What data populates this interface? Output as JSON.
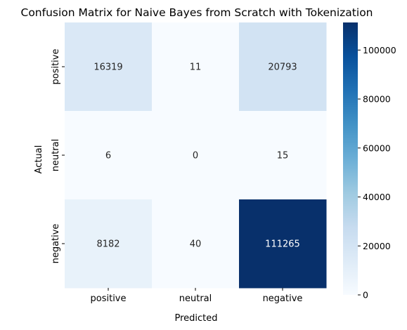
{
  "chart_data": {
    "type": "heatmap",
    "title": "Confusion Matrix for Naive Bayes from Scratch with Tokenization",
    "xlabel": "Predicted",
    "ylabel": "Actual",
    "x_categories": [
      "positive",
      "neutral",
      "negative"
    ],
    "y_categories": [
      "positive",
      "neutral",
      "negative"
    ],
    "values": [
      [
        16319,
        11,
        20793
      ],
      [
        6,
        0,
        15
      ],
      [
        8182,
        40,
        111265
      ]
    ],
    "colormap": "Blues",
    "colorbar": {
      "range": [
        0,
        111265
      ],
      "ticks": [
        0,
        20000,
        40000,
        60000,
        80000,
        100000
      ],
      "tick_labels": [
        "0",
        "20000",
        "40000",
        "60000",
        "80000",
        "100000"
      ]
    }
  }
}
